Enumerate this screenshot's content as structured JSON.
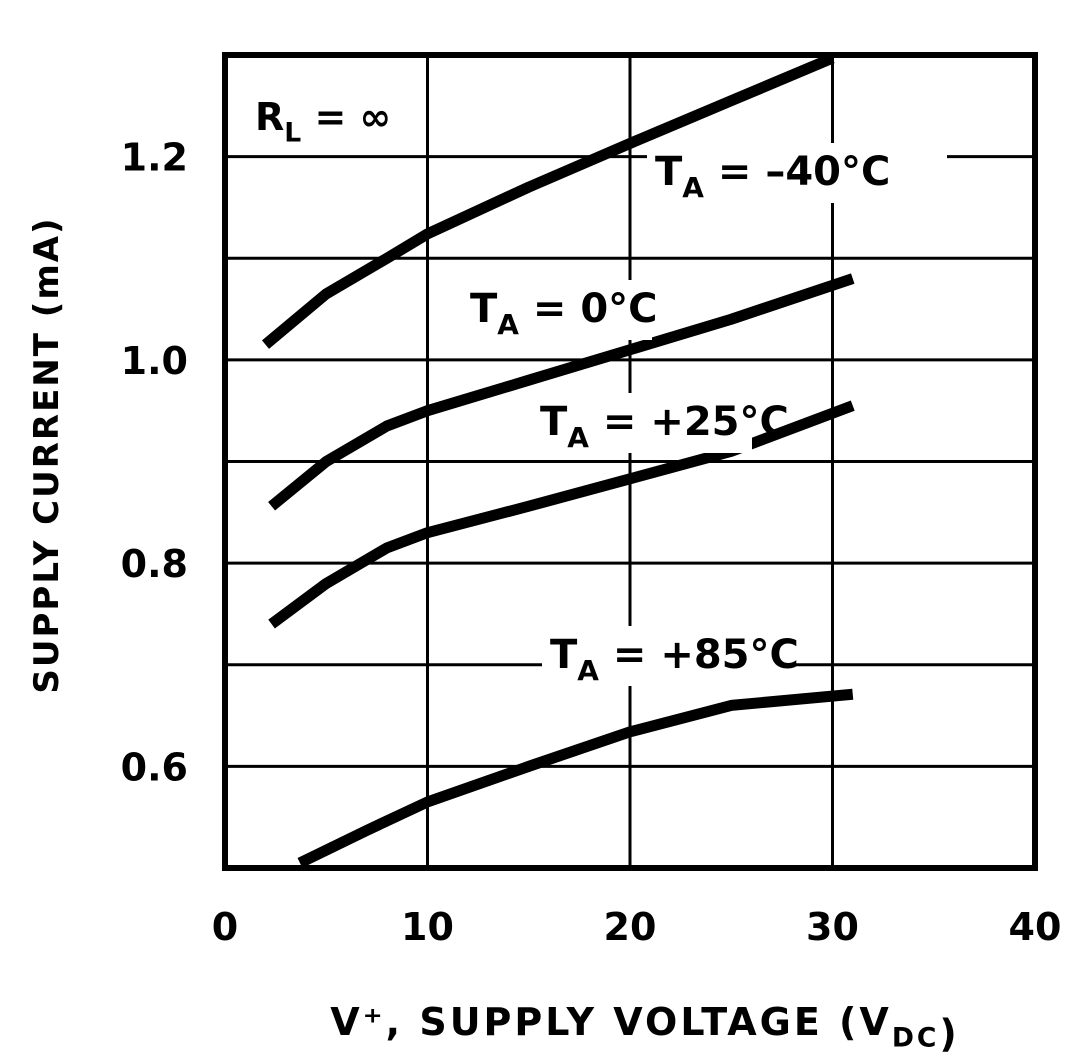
{
  "chart_data": {
    "type": "line",
    "title": "",
    "xlabel": "V⁺, SUPPLY VOLTAGE (V",
    "xlabel_sub": "DC",
    "xlabel_end": ")",
    "ylabel": "SUPPLY CURRENT (mA)",
    "xlim": [
      0,
      40
    ],
    "ylim": [
      0.5,
      1.3
    ],
    "xticks": [
      0,
      10,
      20,
      30,
      40
    ],
    "yticks": [
      0.6,
      0.8,
      1.0,
      1.2
    ],
    "ytick_labels": [
      "0.6",
      "0.8",
      "1.0",
      "1.2"
    ],
    "grid": true,
    "annotation": {
      "text": "R",
      "sub": "L",
      "rest": " = ∞"
    },
    "colors": {
      "line": "#000000",
      "background": "#ffffff"
    },
    "series": [
      {
        "name": "T_A = -40°C",
        "label_main": "T",
        "label_sub": "A",
        "label_rest": " = –40°C",
        "x": [
          2,
          5,
          8,
          10,
          15,
          20,
          25,
          30
        ],
        "y": [
          1.015,
          1.065,
          1.1,
          1.124,
          1.17,
          1.213,
          1.255,
          1.297
        ]
      },
      {
        "name": "T_A = 0°C",
        "label_main": "T",
        "label_sub": "A",
        "label_rest": " = 0°C",
        "x": [
          2.3,
          5,
          8,
          10,
          15,
          20,
          25,
          31
        ],
        "y": [
          0.856,
          0.9,
          0.935,
          0.95,
          0.98,
          1.01,
          1.04,
          1.08
        ]
      },
      {
        "name": "T_A = +25°C",
        "label_main": "T",
        "label_sub": "A",
        "label_rest": " = +25°C",
        "x": [
          2.3,
          5,
          8,
          10,
          15,
          20,
          25,
          31
        ],
        "y": [
          0.74,
          0.78,
          0.815,
          0.83,
          0.856,
          0.883,
          0.91,
          0.955
        ]
      },
      {
        "name": "T_A = +85°C",
        "label_main": "T",
        "label_sub": "A",
        "label_rest": " = +85°C",
        "x": [
          3.7,
          7,
          10,
          15,
          20,
          25,
          31
        ],
        "y": [
          0.505,
          0.537,
          0.565,
          0.6,
          0.634,
          0.66,
          0.671
        ]
      }
    ]
  }
}
